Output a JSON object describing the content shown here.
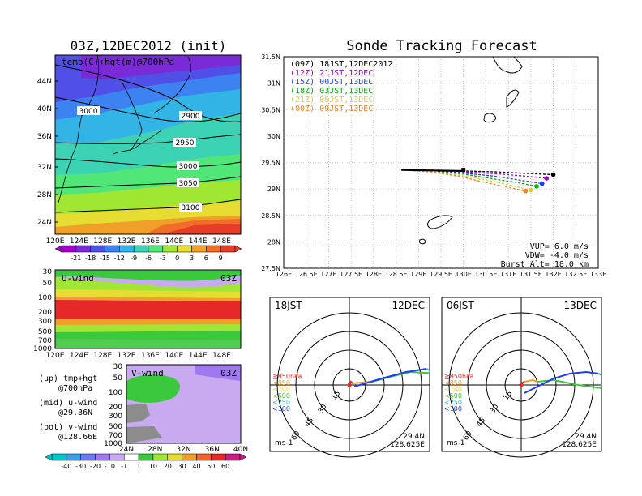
{
  "left_title": "03Z,12DEC2012 (init)",
  "right_title": "Sonde Tracking Forecast",
  "map_panel": {
    "label": "temp(C)+hgt(m)@700hPa",
    "lat_labels": [
      "44N",
      "40N",
      "36N",
      "32N",
      "28N",
      "24N"
    ],
    "lon_labels": [
      "120E",
      "124E",
      "128E",
      "132E",
      "136E",
      "140E",
      "144E",
      "148E"
    ],
    "contour_labels": [
      "3000",
      "2900",
      "2950",
      "3000",
      "3050",
      "3100"
    ]
  },
  "temp_colorbar": {
    "labels": [
      "-21",
      "-18",
      "-15",
      "-12",
      "-9",
      "-6",
      "-3",
      "0",
      "3",
      "6",
      "9"
    ],
    "colors": [
      "#a000c8",
      "#7a2ad6",
      "#5050e6",
      "#3c82f0",
      "#32b4e6",
      "#3cd2b4",
      "#50e678",
      "#a0e632",
      "#e6dc32",
      "#f0a028",
      "#f06e28",
      "#e63c28"
    ]
  },
  "u_panel": {
    "label": "U-wind",
    "time": "03Z",
    "p_labels": [
      "30",
      "50",
      "100",
      "200",
      "300",
      "500",
      "700",
      "1000"
    ],
    "lon_labels": [
      "120E",
      "124E",
      "128E",
      "132E",
      "136E",
      "140E",
      "144E",
      "148E"
    ]
  },
  "v_panel": {
    "label": "V-wind",
    "time": "03Z",
    "p_labels": [
      "30",
      "50",
      "100",
      "200",
      "300",
      "500",
      "700",
      "1000"
    ],
    "lat_labels": [
      "24N",
      "28N",
      "32N",
      "36N",
      "40N"
    ]
  },
  "side_notes": [
    {
      "line1": "(up) tmp+hgt",
      "line2": "@700hPa"
    },
    {
      "line1": "(mid) u-wind",
      "line2": "@29.36N"
    },
    {
      "line1": "(bot) v-wind",
      "line2": "@128.66E"
    }
  ],
  "wind_colorbar": {
    "labels": [
      "-40",
      "-30",
      "-20",
      "-10",
      "-1",
      "1",
      "10",
      "20",
      "30",
      "40",
      "50",
      "60"
    ],
    "colors": [
      "#00c8c8",
      "#3ca0e6",
      "#6e78f0",
      "#a078f0",
      "#c8aaf0",
      "#ffffff",
      "#3cc83c",
      "#a0e632",
      "#e6dc32",
      "#f0a028",
      "#f06428",
      "#e62828",
      "#c81e82"
    ]
  },
  "track_panel": {
    "lat_labels": [
      "31.5N",
      "31N",
      "30.5N",
      "30N",
      "29.5N",
      "29N",
      "28.5N",
      "28N",
      "27.5N"
    ],
    "lon_labels": [
      "126E",
      "126.5E",
      "127E",
      "127.5E",
      "128E",
      "128.5E",
      "129E",
      "129.5E",
      "130E",
      "130.5E",
      "131E",
      "131.5E",
      "132E",
      "132.5E",
      "133E"
    ],
    "legend": [
      {
        "label": "(09Z)  18JST,12DEC2012",
        "color": "#000000"
      },
      {
        "label": "(12Z)  21JST,12DEC",
        "color": "#a000c8"
      },
      {
        "label": "(15Z)  00JST,13DEC",
        "color": "#1e3cff"
      },
      {
        "label": "(18Z)  03JST,13DEC",
        "color": "#00b400"
      },
      {
        "label": "(21Z)  06JST,13DEC",
        "color": "#e6c832"
      },
      {
        "label": "(00Z)  09JST,13DEC",
        "color": "#f08228"
      }
    ],
    "params": [
      "VUP=  6.0  m/s",
      "VDW= -4.0  m/s",
      "Burst Alt=  18.0  km"
    ]
  },
  "hodo_left": {
    "jst": "18JST",
    "date": "12DEC",
    "lat": "29.4N",
    "lon": "128.625E",
    "unit": "ms-1"
  },
  "hodo_right": {
    "jst": "06JST",
    "date": "13DEC",
    "lat": "29.4N",
    "lon": "128.625E",
    "unit": "ms-1"
  },
  "hodo_ring_labels": [
    "15",
    "30",
    "45",
    "60"
  ],
  "hodo_levels": [
    {
      "label": "≧850hPa",
      "color": "#e62828"
    },
    {
      "label": "<850",
      "color": "#f0a028"
    },
    {
      "label": "<700",
      "color": "#e6dc32"
    },
    {
      "label": "<500",
      "color": "#3cc83c"
    },
    {
      "label": "<250",
      "color": "#28b4e6"
    },
    {
      "label": "<100",
      "color": "#1e3cff"
    }
  ],
  "chart_data": {
    "type": "line",
    "title": "Sonde Tracking Forecast",
    "xlim": [
      126,
      133
    ],
    "ylim": [
      27.5,
      31.5
    ],
    "launch": {
      "lon": 128.62,
      "lat": 29.36
    },
    "series": [
      {
        "name": "(09Z)  18JST,12DEC2012",
        "color": "#000000",
        "lon": [
          128.62,
          129.3,
          130.0,
          130.8,
          131.5,
          132.0
        ],
        "lat": [
          29.36,
          29.35,
          29.34,
          29.32,
          29.29,
          29.27
        ]
      },
      {
        "name": "(12Z)  21JST,12DEC",
        "color": "#a000c8",
        "lon": [
          128.62,
          129.3,
          130.0,
          130.7,
          131.4,
          131.85
        ],
        "lat": [
          29.36,
          29.34,
          29.32,
          29.29,
          29.24,
          29.2
        ]
      },
      {
        "name": "(15Z)  00JST,13DEC",
        "color": "#1e3cff",
        "lon": [
          128.62,
          129.3,
          130.0,
          130.7,
          131.3,
          131.75
        ],
        "lat": [
          29.36,
          29.34,
          29.3,
          29.24,
          29.16,
          29.1
        ]
      },
      {
        "name": "(18Z)  03JST,13DEC",
        "color": "#00b400",
        "lon": [
          128.62,
          129.3,
          130.0,
          130.6,
          131.2,
          131.63
        ],
        "lat": [
          29.36,
          29.33,
          29.28,
          29.2,
          29.12,
          29.05
        ]
      },
      {
        "name": "(21Z)  06JST,13DEC",
        "color": "#e6c832",
        "lon": [
          128.62,
          129.3,
          129.9,
          130.5,
          131.1,
          131.5
        ],
        "lat": [
          29.36,
          29.33,
          29.26,
          29.17,
          29.06,
          28.98
        ]
      },
      {
        "name": "(00Z)  09JST,13DEC",
        "color": "#f08228",
        "lon": [
          128.62,
          129.3,
          129.9,
          130.4,
          131.0,
          131.38
        ],
        "lat": [
          29.36,
          29.32,
          29.24,
          29.14,
          29.03,
          28.96
        ]
      }
    ]
  }
}
